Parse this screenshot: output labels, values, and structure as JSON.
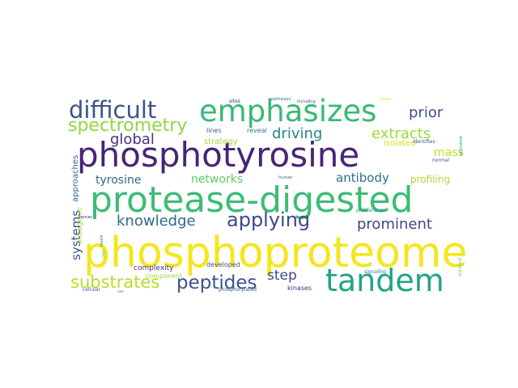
{
  "palette": {
    "dark_purple": "#482173",
    "indigo": "#3e4a89",
    "blue": "#31688e",
    "teal": "#26828e",
    "teal_green": "#1f9e89",
    "green": "#35b779",
    "light_green": "#6ece58",
    "lime": "#b5de2b",
    "yellow": "#fde725"
  },
  "words": [
    {
      "text": "phosphoproteome",
      "color": "#f4e61e"
    },
    {
      "text": "protease-digested",
      "color": "#3cbc75"
    },
    {
      "text": "phosphotyrosine",
      "color": "#482475"
    },
    {
      "text": "emphasizes",
      "color": "#38b977"
    },
    {
      "text": "tandem",
      "color": "#20a386"
    },
    {
      "text": "difficult",
      "color": "#3b528b"
    },
    {
      "text": "applying",
      "color": "#3e4989"
    },
    {
      "text": "spectrometry",
      "color": "#8fd744"
    },
    {
      "text": "prominent",
      "color": "#414487"
    },
    {
      "text": "substrates",
      "color": "#b8de29"
    },
    {
      "text": "peptides",
      "color": "#3b528b"
    },
    {
      "text": "knowledge",
      "color": "#31688e"
    },
    {
      "text": "driving",
      "color": "#25848e"
    },
    {
      "text": "extracts",
      "color": "#9dd93b"
    },
    {
      "text": "global",
      "color": "#46337f"
    },
    {
      "text": "prior",
      "color": "#3b528b"
    },
    {
      "text": "mass",
      "color": "#c2df23"
    },
    {
      "text": "step",
      "color": "#3e4989"
    },
    {
      "text": "antibody",
      "color": "#2c728e"
    },
    {
      "text": "tyrosine",
      "color": "#31688e"
    },
    {
      "text": "networks",
      "color": "#5ec962"
    },
    {
      "text": "systems",
      "color": "#3b528b"
    },
    {
      "text": "profiling",
      "color": "#addc30"
    },
    {
      "text": "approaches",
      "color": "#31688e"
    },
    {
      "text": "oncogenic",
      "color": "#a5db36"
    },
    {
      "text": "strategy",
      "color": "#a0da39"
    },
    {
      "text": "isolated",
      "color": "#d8e219"
    },
    {
      "text": "lines",
      "color": "#38598c"
    },
    {
      "text": "reveal",
      "color": "#2a788e"
    },
    {
      "text": "complexity",
      "color": "#472d7b"
    },
    {
      "text": "developed",
      "color": "#39558c"
    },
    {
      "text": "component",
      "color": "#9bd93c"
    },
    {
      "text": "kinases",
      "color": "#472c7a"
    },
    {
      "text": "phosphorylated",
      "color": "#3b528b"
    },
    {
      "text": "signaling",
      "color": "#2a788e"
    },
    {
      "text": "survival",
      "color": "#6ccd5a"
    },
    {
      "text": "proliferation",
      "color": "#1f958b"
    },
    {
      "text": "identifies",
      "color": "#38588c"
    },
    {
      "text": "normal",
      "color": "#3b528b"
    },
    {
      "text": "activated",
      "color": "#1e9b8a"
    },
    {
      "text": "human",
      "color": "#31688e"
    },
    {
      "text": "cellular",
      "color": "#3b528b"
    },
    {
      "text": "role",
      "color": "#2c718e"
    },
    {
      "text": "cancer",
      "color": "#482576"
    },
    {
      "text": "levels",
      "color": "#2a768e"
    },
    {
      "text": "play",
      "color": "#7ad151"
    },
    {
      "text": "sites",
      "color": "#46327e"
    },
    {
      "text": "pathways",
      "color": "#2a778e"
    },
    {
      "text": "including",
      "color": "#355f8d"
    },
    {
      "text": "assess",
      "color": "#c8e020"
    }
  ]
}
